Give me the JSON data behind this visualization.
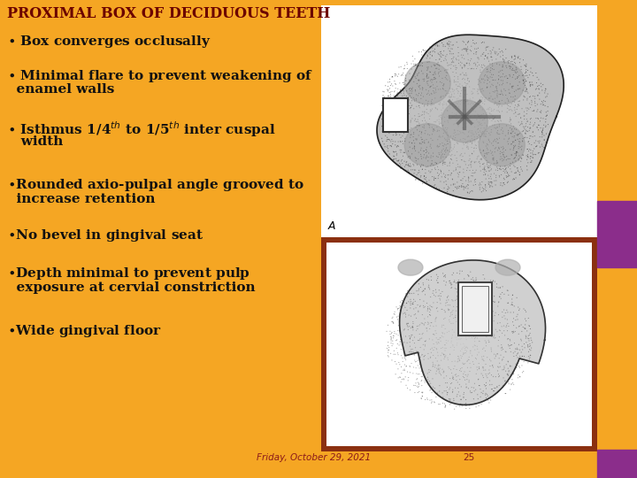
{
  "background_color": "#F5A623",
  "title": "PROXIMAL BOX OF DECIDUOUS TEETH",
  "title_color": "#6B0000",
  "title_fontsize": 11.5,
  "bullet_color": "#111111",
  "bullet_fontsize": 11,
  "footer_text": "Friday, October 29, 2021",
  "footer_page": "25",
  "footer_color": "#8B1A1A",
  "footer_fontsize": 7.5,
  "purple_color": "#8B2D8B",
  "image1_border_color": "#F5A623",
  "image2_border_color": "#8B3010",
  "orange_color": "#F5A623"
}
